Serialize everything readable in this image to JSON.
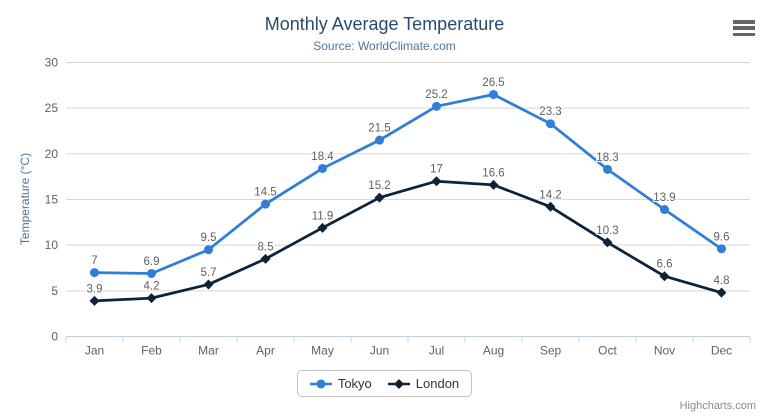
{
  "header": {
    "title": "Monthly Average Temperature",
    "subtitle": "Source: WorldClimate.com"
  },
  "credits": {
    "label": "Highcharts.com"
  },
  "chart_data": {
    "type": "line",
    "title": "Monthly Average Temperature",
    "subtitle": "Source: WorldClimate.com",
    "categories": [
      "Jan",
      "Feb",
      "Mar",
      "Apr",
      "May",
      "Jun",
      "Jul",
      "Aug",
      "Sep",
      "Oct",
      "Nov",
      "Dec"
    ],
    "series": [
      {
        "name": "Tokyo",
        "color": "#2f7ed8",
        "marker": "circle",
        "values": [
          7,
          6.9,
          9.5,
          14.5,
          18.4,
          21.5,
          25.2,
          26.5,
          23.3,
          18.3,
          13.9,
          9.6
        ]
      },
      {
        "name": "London",
        "color": "#0d233a",
        "marker": "diamond",
        "values": [
          3.9,
          4.2,
          5.7,
          8.5,
          11.9,
          15.2,
          17,
          16.6,
          14.2,
          10.3,
          6.6,
          4.8
        ]
      }
    ],
    "xlabel": "",
    "ylabel": "Temperature (°C)",
    "ylim": [
      0,
      30
    ],
    "ytick_interval": 5,
    "grid": true,
    "grid_color": "#d8d8d8",
    "axis_line_color": "#c0d0e0",
    "legend_position": "bottom",
    "data_labels": true
  }
}
